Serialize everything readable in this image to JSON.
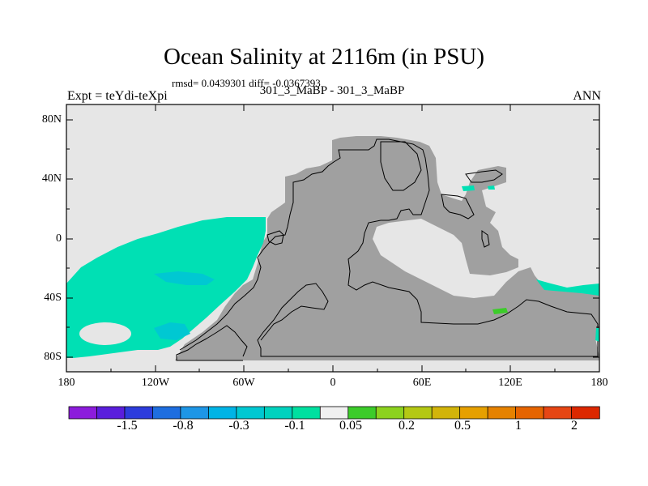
{
  "title": "Ocean Salinity at 2116m (in PSU)",
  "stats": "rmsd= 0.0439301 diff= -0.0367393",
  "comparison": "301_3_MaBP - 301_3_MaBP",
  "experiment": "Expt = teYdi-teXpi",
  "season": "ANN",
  "map": {
    "lat_ticks": [
      "80N",
      "40N",
      "0",
      "40S",
      "80S"
    ],
    "lon_ticks": [
      "180",
      "120W",
      "60W",
      "0",
      "60E",
      "120E",
      "180"
    ],
    "colors": {
      "background": "#e6e6e6",
      "land": "#a0a0a0",
      "neg_small": "#00e0b4",
      "neg_mid": "#00c8d2",
      "pos_small": "#3ccc2a",
      "coast": "#000000"
    }
  },
  "colorbar": {
    "colors": [
      "#8c1cdc",
      "#5a1edc",
      "#2d3cdc",
      "#1e6ee0",
      "#1e96e6",
      "#00b4e6",
      "#00c8d2",
      "#00d2be",
      "#00e0a0",
      "#f0f0f0",
      "#3ccc2a",
      "#8cd21e",
      "#b4c814",
      "#d2b40a",
      "#e6a000",
      "#e68200",
      "#e66400",
      "#e64614",
      "#dc2800"
    ],
    "labels": [
      "-1.5",
      "-0.8",
      "-0.3",
      "-0.1",
      "0.05",
      "0.2",
      "0.5",
      "1",
      "2"
    ]
  }
}
